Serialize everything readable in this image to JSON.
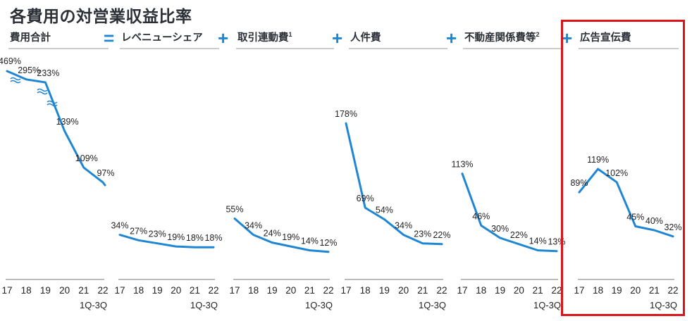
{
  "title": "各費用の対営業収益比率",
  "colors": {
    "line": "#1f86d4",
    "operator": "#1f86d4",
    "highlight": "#d9141b",
    "text": "#2b2f36"
  },
  "operators": [
    "=",
    "+",
    "+",
    "+",
    "+"
  ],
  "x_categories": [
    "17",
    "18",
    "19",
    "20",
    "21",
    "22"
  ],
  "period_note": "1Q-3Q",
  "chart_data": [
    {
      "type": "line",
      "title": "費用合計",
      "footnote": "",
      "categories": [
        "17",
        "18",
        "19",
        "20",
        "21",
        "22"
      ],
      "values": [
        469,
        295,
        233,
        139,
        109,
        97
      ],
      "labels": [
        "469%",
        "295%",
        "233%",
        "139%",
        "109%",
        "97%"
      ],
      "broken_axis": true
    },
    {
      "type": "line",
      "title": "レベニューシェア",
      "footnote": "",
      "categories": [
        "17",
        "18",
        "19",
        "20",
        "21",
        "22"
      ],
      "values": [
        34,
        27,
        23,
        19,
        18,
        18
      ],
      "labels": [
        "34%",
        "27%",
        "23%",
        "19%",
        "18%",
        "18%"
      ]
    },
    {
      "type": "line",
      "title": "取引連動費",
      "footnote": "1",
      "categories": [
        "17",
        "18",
        "19",
        "20",
        "21",
        "22"
      ],
      "values": [
        55,
        34,
        24,
        19,
        14,
        12
      ],
      "labels": [
        "55%",
        "34%",
        "24%",
        "19%",
        "14%",
        "12%"
      ]
    },
    {
      "type": "line",
      "title": "人件費",
      "footnote": "",
      "categories": [
        "17",
        "18",
        "19",
        "20",
        "21",
        "22"
      ],
      "values": [
        178,
        69,
        54,
        34,
        23,
        22
      ],
      "labels": [
        "178%",
        "69%",
        "54%",
        "34%",
        "23%",
        "22%"
      ]
    },
    {
      "type": "line",
      "title": "不動産関係費等",
      "footnote": "2",
      "categories": [
        "17",
        "18",
        "19",
        "20",
        "21",
        "22"
      ],
      "values": [
        113,
        46,
        30,
        22,
        14,
        13
      ],
      "labels": [
        "113%",
        "46%",
        "30%",
        "22%",
        "14%",
        "13%"
      ]
    },
    {
      "type": "line",
      "title": "広告宣伝費",
      "footnote": "",
      "categories": [
        "17",
        "18",
        "19",
        "20",
        "21",
        "22"
      ],
      "values": [
        89,
        119,
        102,
        45,
        40,
        32
      ],
      "labels": [
        "89%",
        "119%",
        "102%",
        "45%",
        "40%",
        "32%"
      ],
      "highlighted": true
    }
  ]
}
